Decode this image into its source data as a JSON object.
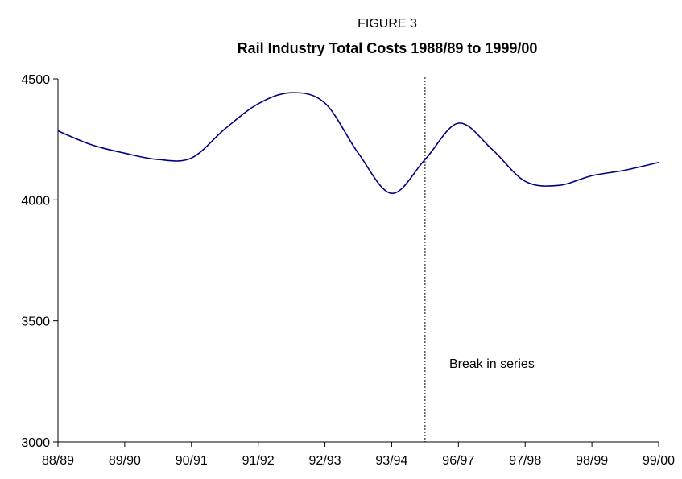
{
  "chart_data": {
    "type": "line",
    "figure_label": "FIGURE 3",
    "title": "Rail Industry Total Costs 1988/89 to 1999/00",
    "annotation": "Break in series",
    "categories": [
      "88/89",
      null,
      "89/90",
      null,
      "90/91",
      null,
      "91/92",
      null,
      "92/93",
      null,
      "93/94",
      null,
      "96/97",
      null,
      "97/98",
      null,
      "98/99",
      null,
      "99/00"
    ],
    "series": [
      {
        "name": "Total costs",
        "color": "#000080",
        "values": [
          4285,
          4228,
          4193,
          4167,
          4173,
          4293,
          4397,
          4443,
          4400,
          4193,
          4027,
          4167,
          4317,
          4210,
          4077,
          4060,
          4100,
          4123,
          4155
        ]
      }
    ],
    "ylim": [
      3000,
      4500
    ],
    "yticks": [
      3000,
      3500,
      4000,
      4500
    ],
    "grid": false
  }
}
